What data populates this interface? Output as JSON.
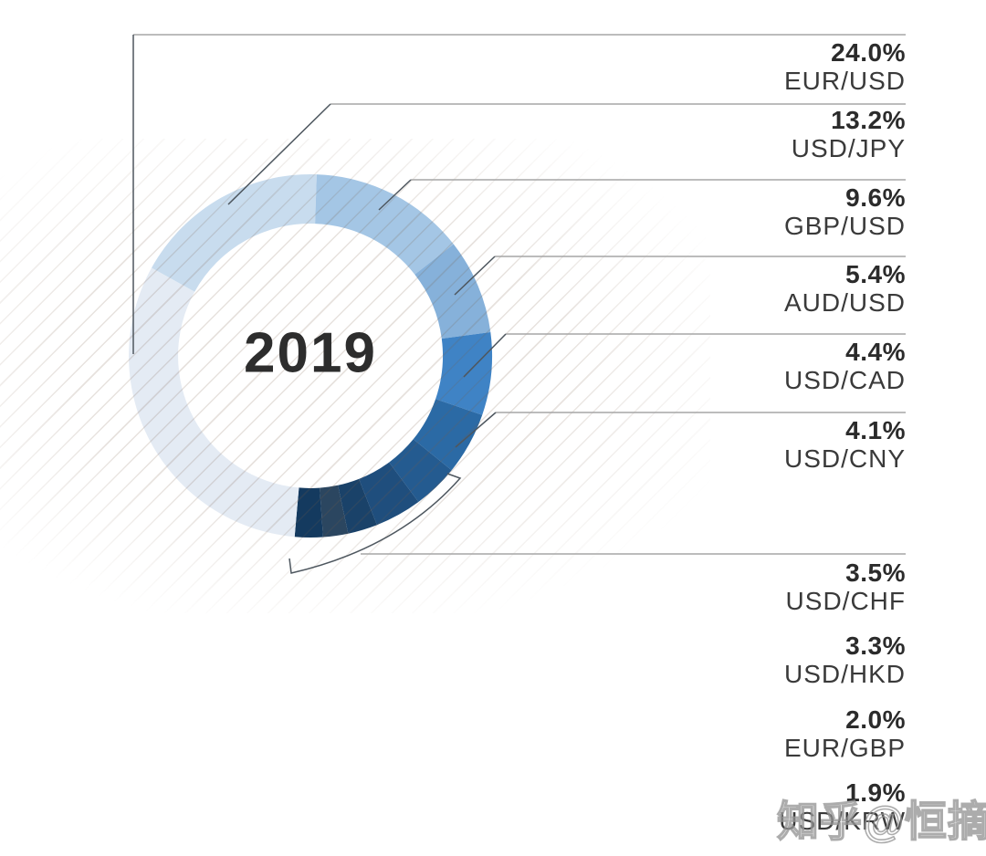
{
  "chart_data": {
    "type": "donut",
    "center_label": "2019",
    "legend_position": "right",
    "segments": [
      {
        "pair": "EUR/USD",
        "pct": "24.0%",
        "value": 24.0,
        "color": "#c8dcee",
        "arc": [
          -61,
          2
        ]
      },
      {
        "pair": "USD/JPY",
        "pct": "13.2%",
        "value": 13.2,
        "color": "#a4c6e5",
        "arc": [
          2,
          52
        ]
      },
      {
        "pair": "GBP/USD",
        "pct": "9.6%",
        "value": 9.6,
        "color": "#86b1da",
        "arc": [
          52,
          82.5
        ]
      },
      {
        "pair": "AUD/USD",
        "pct": "5.4%",
        "value": 5.4,
        "color": "#3f83c5",
        "arc": [
          82.5,
          109
        ]
      },
      {
        "pair": "USD/CAD",
        "pct": "4.4%",
        "value": 4.4,
        "color": "#2b6aa5",
        "arc": [
          109,
          129
        ]
      },
      {
        "pair": "USD/CNY",
        "pct": "4.1%",
        "value": 4.1,
        "color": "#245b90",
        "arc": [
          129,
          143.5
        ]
      },
      {
        "pair": "USD/CHF",
        "pct": "3.5%",
        "value": 3.5,
        "color": "#1f4e7d",
        "arc": [
          143.5,
          158.5
        ]
      },
      {
        "pair": "USD/HKD",
        "pct": "3.3%",
        "value": 3.3,
        "color": "#1a4269",
        "arc": [
          158.5,
          168
        ]
      },
      {
        "pair": "EUR/GBP",
        "pct": "2.0%",
        "value": 2.0,
        "color": "#2b4660",
        "arc": [
          168,
          176
        ]
      },
      {
        "pair": "USD/KRW",
        "pct": "1.9%",
        "value": 1.9,
        "color": "#143a5f",
        "arc": [
          176,
          185
        ]
      }
    ],
    "others": {
      "value": 28.6,
      "color": "#e4ebf4",
      "arc": [
        185,
        299
      ]
    }
  },
  "watermark": {
    "text": "知乎@恒摘"
  },
  "style": {
    "rule_line_color": "#a6a6a6",
    "leader_line_color": "#4e575f",
    "center_text_color": "#2d2d2d",
    "percent_text_color": "#2b2b2b",
    "pair_text_color": "#3a3a3a",
    "hatch_line_color": "#e3dbd3",
    "background": "#ffffff"
  }
}
